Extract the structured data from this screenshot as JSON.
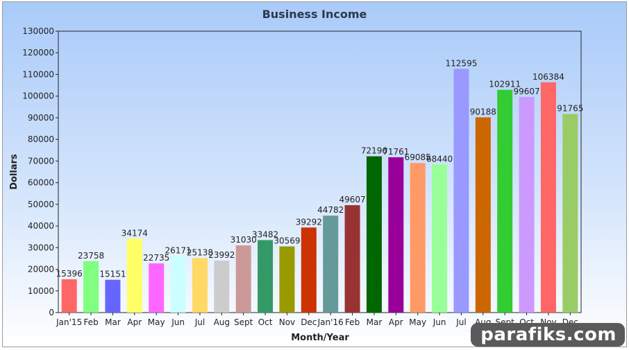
{
  "chart_data": {
    "type": "bar",
    "title": "Business Income",
    "xlabel": "Month/Year",
    "ylabel": "Dollars",
    "ylim": [
      0,
      130000
    ],
    "yticks": [
      0,
      10000,
      20000,
      30000,
      40000,
      50000,
      60000,
      70000,
      80000,
      90000,
      100000,
      110000,
      120000,
      130000
    ],
    "categories": [
      "Jan'15",
      "Feb",
      "Mar",
      "Apr",
      "May",
      "Jun",
      "Jul",
      "Aug",
      "Sept",
      "Oct",
      "Nov",
      "Dec",
      "Jan'16",
      "Feb",
      "Mar",
      "Apr",
      "May",
      "Jun",
      "Jul",
      "Aug",
      "Sept",
      "Oct",
      "Nov",
      "Dec"
    ],
    "values": [
      15396,
      23758,
      15151,
      34174,
      22735,
      26171,
      25138,
      23992,
      31030,
      33482,
      30569,
      39292,
      44782,
      49607,
      72196,
      71761,
      69085,
      68440,
      112595,
      90188,
      102911,
      99607,
      106384,
      91765
    ],
    "colors": [
      "#ff6666",
      "#80ff80",
      "#6666ff",
      "#ffff66",
      "#ff66ff",
      "#ccffff",
      "#ffd966",
      "#cccccc",
      "#cc9999",
      "#339966",
      "#999900",
      "#cc3300",
      "#669999",
      "#993333",
      "#006600",
      "#990099",
      "#ff9966",
      "#99ff99",
      "#9999ff",
      "#cc6600",
      "#33cc33",
      "#cc99ff",
      "#ff6666",
      "#99cc66"
    ],
    "grid": false,
    "legend": "none"
  },
  "watermark": "parafiks.com"
}
